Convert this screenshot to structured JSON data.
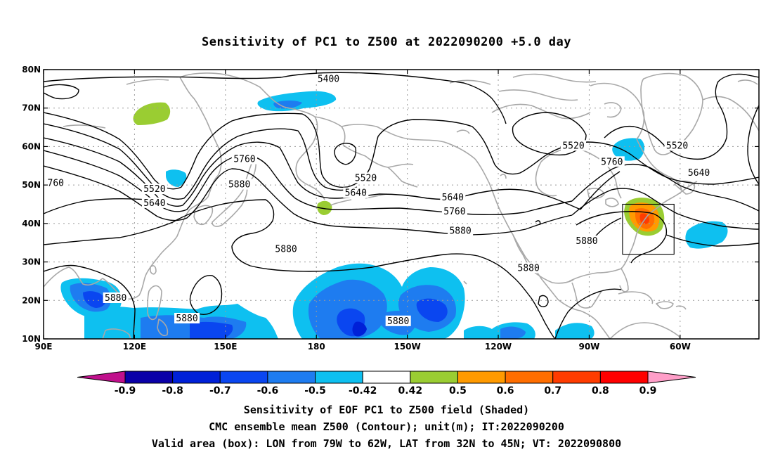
{
  "title": "Sensitivity of PC1 to Z500 at 2022090200 +5.0 day",
  "map": {
    "lat_ticks": [
      {
        "value": 80,
        "label": "80N"
      },
      {
        "value": 70,
        "label": "70N"
      },
      {
        "value": 60,
        "label": "60N"
      },
      {
        "value": 50,
        "label": "50N"
      },
      {
        "value": 40,
        "label": "40N"
      },
      {
        "value": 30,
        "label": "30N"
      },
      {
        "value": 20,
        "label": "20N"
      },
      {
        "value": 10,
        "label": "10N"
      }
    ],
    "lon_ticks": [
      {
        "value": 90,
        "label": "90E"
      },
      {
        "value": 120,
        "label": "120E"
      },
      {
        "value": 150,
        "label": "150E"
      },
      {
        "value": 180,
        "label": "180"
      },
      {
        "value": 210,
        "label": "150W"
      },
      {
        "value": 240,
        "label": "120W"
      },
      {
        "value": 270,
        "label": "90W"
      },
      {
        "value": 300,
        "label": "60W"
      }
    ],
    "lon_range": [
      90,
      326
    ],
    "lat_range": [
      10,
      80
    ],
    "gridlines": true,
    "valid_box": {
      "lon_min": 281,
      "lon_max": 298,
      "lat_min": 32,
      "lat_max": 45
    },
    "contour_labels": [
      {
        "text": "5400",
        "lon": 184.0,
        "lat": 77.5
      },
      {
        "text": "5520",
        "lon": 126.6,
        "lat": 48.9
      },
      {
        "text": "5640",
        "lon": 126.6,
        "lat": 45.3
      },
      {
        "text": "760",
        "lon": 94.0,
        "lat": 50.5
      },
      {
        "text": "5760",
        "lon": 156.3,
        "lat": 56.7
      },
      {
        "text": "5880",
        "lon": 154.6,
        "lat": 50.1
      },
      {
        "text": "5880",
        "lon": 170.0,
        "lat": 33.3
      },
      {
        "text": "5520",
        "lon": 196.3,
        "lat": 51.8
      },
      {
        "text": "5640",
        "lon": 193.0,
        "lat": 47.9
      },
      {
        "text": "5640",
        "lon": 225.0,
        "lat": 46.7
      },
      {
        "text": "5760",
        "lon": 225.6,
        "lat": 43.1
      },
      {
        "text": "5880",
        "lon": 227.5,
        "lat": 38.1
      },
      {
        "text": "5880",
        "lon": 250.0,
        "lat": 28.4
      },
      {
        "text": "5880",
        "lon": 113.8,
        "lat": 20.6
      },
      {
        "text": "5880",
        "lon": 137.3,
        "lat": 15.3
      },
      {
        "text": "5880",
        "lon": 207.0,
        "lat": 14.6
      },
      {
        "text": "5520",
        "lon": 264.8,
        "lat": 60.2
      },
      {
        "text": "5760",
        "lon": 277.5,
        "lat": 56.0
      },
      {
        "text": "5520",
        "lon": 299.0,
        "lat": 60.2
      },
      {
        "text": "5640",
        "lon": 306.2,
        "lat": 53.1
      },
      {
        "text": "5880",
        "lon": 269.2,
        "lat": 35.4
      }
    ]
  },
  "colorbar": {
    "labels": [
      "-0.9",
      "-0.8",
      "-0.7",
      "-0.6",
      "-0.5",
      "-0.42",
      "0.42",
      "0.5",
      "0.6",
      "0.7",
      "0.8",
      "0.9"
    ],
    "colors": [
      "#c0108c",
      "#0a00a8",
      "#0020d8",
      "#0a46f0",
      "#1e7cf0",
      "#0ec0f0",
      "#ffffff",
      "#9acd32",
      "#ff9a00",
      "#ff6e00",
      "#ff3c00",
      "#ff0000",
      "#ff9ec8"
    ]
  },
  "footer": {
    "line1": "Sensitivity of EOF PC1 to Z500 field (Shaded)",
    "line2": "CMC ensemble mean Z500 (Contour); unit(m); IT:2022090200",
    "line3": "Valid area (box): LON from 79W to 62W, LAT from 32N to 45N; VT: 2022090800"
  }
}
